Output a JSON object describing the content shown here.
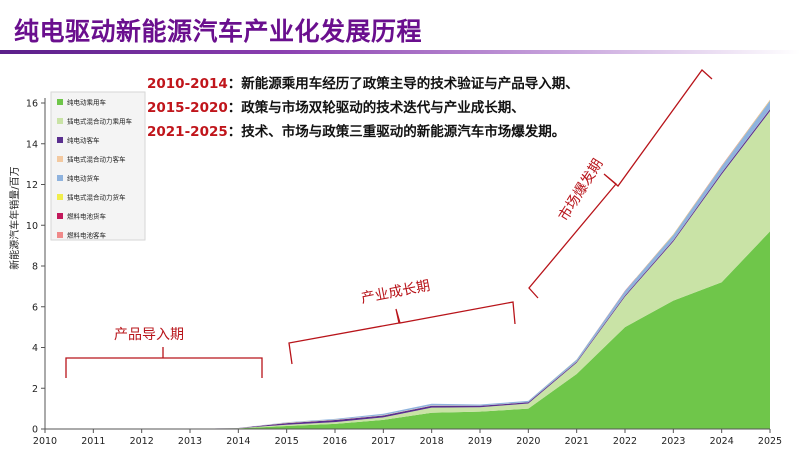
{
  "title": "纯电驱动新能源汽车产业化发展历程",
  "phases": [
    {
      "years": "2010-2014",
      "text": "：新能源乘用车经历了政策主导的技术验证与产品导入期、"
    },
    {
      "years": "2015-2020",
      "text": "：政策与市场双轮驱动的技术迭代与产业成长期、"
    },
    {
      "years": "2021-2025",
      "text": "：技术、市场与政策三重驱动的新能源汽车市场爆发期。"
    }
  ],
  "colors": {
    "title": "#6a0f8e",
    "annotation": "#b8141a",
    "phase_years": "#c0151b"
  },
  "chart_data": {
    "type": "area",
    "stacked": true,
    "x": [
      2010,
      2011,
      2012,
      2013,
      2014,
      2015,
      2016,
      2017,
      2018,
      2019,
      2020,
      2021,
      2022,
      2023,
      2024,
      2025
    ],
    "xlim": [
      2010,
      2025
    ],
    "ylim": [
      0,
      16
    ],
    "yticks": [
      0,
      2,
      4,
      6,
      8,
      10,
      12,
      14,
      16
    ],
    "ylabel": "新能源汽车年销量/百万",
    "grid": false,
    "legend_position": "top-left",
    "series": [
      {
        "name": "纯电动乘用车",
        "color": "#6fc64a",
        "values": [
          0,
          0,
          0,
          0,
          0.03,
          0.15,
          0.25,
          0.45,
          0.8,
          0.85,
          1.0,
          2.7,
          5.0,
          6.3,
          7.2,
          9.7
        ]
      },
      {
        "name": "插电式混合动力乘用车",
        "color": "#c9e3a6",
        "values": [
          0,
          0,
          0,
          0,
          0.01,
          0.06,
          0.09,
          0.12,
          0.25,
          0.22,
          0.25,
          0.55,
          1.5,
          2.9,
          5.3,
          5.9
        ]
      },
      {
        "name": "纯电动客车",
        "color": "#5a2f8f",
        "values": [
          0,
          0,
          0,
          0,
          0.01,
          0.08,
          0.1,
          0.09,
          0.09,
          0.07,
          0.06,
          0.05,
          0.06,
          0.07,
          0.08,
          0.1
        ]
      },
      {
        "name": "插电式混合动力客车",
        "color": "#f3c9a0",
        "values": [
          0,
          0,
          0,
          0,
          0,
          0.02,
          0.02,
          0.02,
          0.02,
          0.01,
          0.01,
          0.01,
          0.01,
          0.01,
          0.01,
          0.01
        ]
      },
      {
        "name": "纯电动货车",
        "color": "#8fb3de",
        "values": [
          0,
          0,
          0,
          0,
          0,
          0.02,
          0.04,
          0.07,
          0.08,
          0.05,
          0.06,
          0.1,
          0.2,
          0.25,
          0.3,
          0.4
        ]
      },
      {
        "name": "插电式混合动力货车",
        "color": "#f1ee4c",
        "values": [
          0,
          0,
          0,
          0,
          0,
          0,
          0,
          0,
          0,
          0,
          0,
          0.01,
          0.01,
          0.02,
          0.02,
          0.03
        ]
      },
      {
        "name": "燃料电池货车",
        "color": "#c2185b",
        "values": [
          0,
          0,
          0,
          0,
          0,
          0,
          0,
          0,
          0,
          0,
          0,
          0,
          0.01,
          0.01,
          0.01,
          0.01
        ]
      },
      {
        "name": "燃料电池客车",
        "color": "#f08a8a",
        "values": [
          0,
          0,
          0,
          0,
          0,
          0,
          0,
          0,
          0,
          0,
          0,
          0,
          0,
          0,
          0.01,
          0.01
        ]
      }
    ],
    "annotations": [
      "产品导入期",
      "产业成长期",
      "市场爆发期"
    ]
  }
}
